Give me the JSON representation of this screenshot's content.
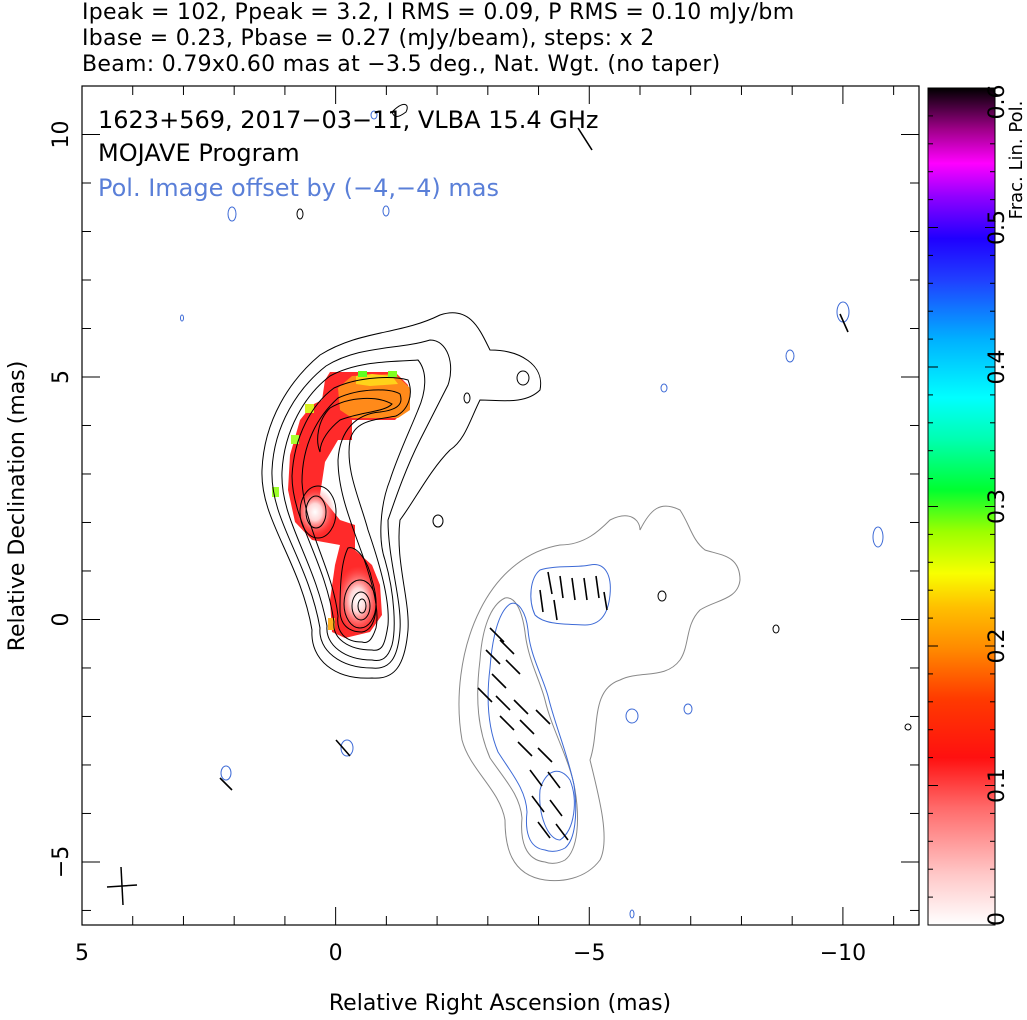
{
  "header": {
    "line1": "Ipeak = 102, Ppeak = 3.2, I RMS = 0.09, P RMS = 0.10 mJy/bm",
    "line2": "Ibase = 0.23, Pbase = 0.27 (mJy/beam), steps: x 2",
    "line3": "Beam: 0.79x0.60 mas at −3.5 deg., Nat. Wgt. (no taper)"
  },
  "annotations": {
    "source": "1623+569, 2017−03−11, VLBA 15.4 GHz",
    "program": "MOJAVE Program",
    "pol_offset": "Pol. Image offset by (−4,−4) mas"
  },
  "colors": {
    "contour_total": "#000000",
    "contour_pol_offset": "#888888",
    "contour_noise": "#3d6ad6",
    "offset_text": "#5a7fd8",
    "evpa": "#000000"
  },
  "chart_data": {
    "type": "heatmap",
    "xlabel": "Relative Right Ascension (mas)",
    "ylabel": "Relative Declination (mas)",
    "xlim": [
      5.0,
      -11.5
    ],
    "ylim": [
      -6.3,
      11.0
    ],
    "x_ticks": [
      5,
      0,
      -5,
      -10
    ],
    "x_tick_labels": [
      "5",
      "0",
      "−5",
      "−10"
    ],
    "y_ticks": [
      -5,
      0,
      5,
      10
    ],
    "y_tick_labels": [
      "−5",
      "0",
      "5",
      "10"
    ],
    "colorbar": {
      "label": "Frac. Lin. Pol.",
      "range": [
        0,
        0.6
      ],
      "ticks": [
        0,
        0.1,
        0.2,
        0.3,
        0.4,
        0.5,
        0.6
      ],
      "tick_labels": [
        "0",
        "0.1",
        "0.2",
        "0.3",
        "0.4",
        "0.5",
        "0.6"
      ]
    },
    "beam": {
      "major_mas": 0.79,
      "minor_mas": 0.6,
      "pa_deg": -3.5,
      "center": [
        4.8,
        -5.5
      ]
    },
    "core": {
      "ra": 0.0,
      "dec": 0.25,
      "peak_mJy_per_beam": 102
    },
    "pol_offset": [
      -4,
      -4
    ]
  }
}
